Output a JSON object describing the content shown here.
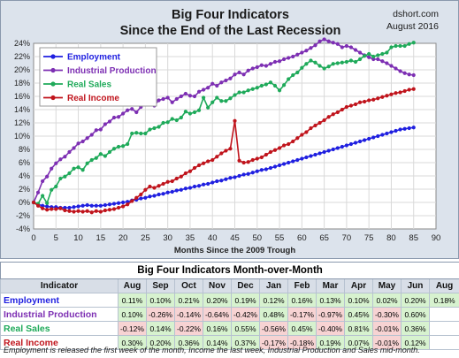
{
  "chart_data": {
    "type": "line",
    "title": "Big Four Indicators",
    "subtitle": "Since the End of the Last Recession",
    "source": "dshort.com",
    "date": "August 2016",
    "xlabel": "Months Since the 2009 Trough",
    "ylabel": "",
    "xlim": [
      0,
      90
    ],
    "ylim": [
      -4,
      24
    ],
    "xticks": [
      0,
      5,
      10,
      15,
      20,
      25,
      30,
      35,
      40,
      45,
      50,
      55,
      60,
      65,
      70,
      75,
      80,
      85,
      90
    ],
    "yticks": [
      "-4%",
      "-2%",
      "0%",
      "2%",
      "4%",
      "6%",
      "8%",
      "10%",
      "12%",
      "14%",
      "16%",
      "18%",
      "20%",
      "22%",
      "24%"
    ],
    "grid": true,
    "legend": "top-left",
    "series": [
      {
        "name": "Employment",
        "color": "#1f1fe0",
        "values": [
          0,
          -0.3,
          -0.5,
          -0.6,
          -0.7,
          -0.7,
          -0.8,
          -0.8,
          -0.8,
          -0.7,
          -0.6,
          -0.5,
          -0.4,
          -0.5,
          -0.5,
          -0.5,
          -0.4,
          -0.3,
          -0.2,
          -0.1,
          0,
          0.1,
          0.3,
          0.4,
          0.6,
          0.7,
          0.9,
          1.0,
          1.2,
          1.3,
          1.5,
          1.6,
          1.8,
          1.9,
          2.1,
          2.2,
          2.4,
          2.5,
          2.7,
          2.8,
          3.0,
          3.2,
          3.3,
          3.5,
          3.7,
          3.8,
          4.0,
          4.2,
          4.3,
          4.5,
          4.7,
          4.9,
          5.0,
          5.2,
          5.4,
          5.6,
          5.8,
          6.0,
          6.2,
          6.4,
          6.6,
          6.8,
          7.0,
          7.2,
          7.4,
          7.6,
          7.8,
          8.0,
          8.2,
          8.4,
          8.6,
          8.8,
          9.0,
          9.2,
          9.4,
          9.6,
          9.8,
          10.0,
          10.2,
          10.4,
          10.6,
          10.8,
          11.0,
          11.1,
          11.2,
          11.3
        ]
      },
      {
        "name": "Industrial Production",
        "color": "#7d2fb3",
        "values": [
          0,
          1.5,
          3.2,
          3.9,
          5.1,
          5.9,
          6.5,
          6.9,
          7.6,
          8.2,
          8.9,
          9.2,
          9.7,
          10.2,
          10.9,
          11.0,
          11.8,
          12.2,
          12.8,
          12.9,
          13.4,
          13.9,
          14.1,
          13.6,
          14.4,
          14.9,
          15.0,
          14.6,
          15.4,
          15.6,
          15.8,
          15.1,
          15.6,
          16.0,
          16.4,
          16.1,
          16.0,
          16.7,
          17.0,
          17.3,
          17.9,
          17.6,
          18.1,
          18.4,
          18.7,
          19.3,
          19.6,
          19.3,
          19.9,
          20.2,
          20.4,
          20.7,
          20.6,
          20.9,
          21.2,
          21.3,
          21.6,
          21.8,
          22.0,
          22.3,
          22.6,
          22.9,
          23.3,
          23.7,
          24.3,
          24.6,
          24.3,
          24.1,
          23.9,
          23.4,
          23.6,
          23.4,
          23.0,
          22.6,
          22.2,
          21.9,
          21.6,
          21.6,
          21.3,
          21.0,
          20.6,
          20.2,
          19.8,
          19.5,
          19.3,
          19.2
        ]
      },
      {
        "name": "Real Sales",
        "color": "#1faa5a",
        "values": [
          0,
          -0.2,
          1.0,
          -0.1,
          1.9,
          2.4,
          3.6,
          3.9,
          4.4,
          5.1,
          5.3,
          4.9,
          5.9,
          6.4,
          6.7,
          7.3,
          7.0,
          7.6,
          8.1,
          8.4,
          8.5,
          8.8,
          10.4,
          10.5,
          10.4,
          10.4,
          11.0,
          11.2,
          11.4,
          12.0,
          12.1,
          12.6,
          12.4,
          12.8,
          13.7,
          13.4,
          13.6,
          13.9,
          15.8,
          14.3,
          15.1,
          15.8,
          15.3,
          15.3,
          15.7,
          16.2,
          16.6,
          16.6,
          16.9,
          17.1,
          17.3,
          17.6,
          17.8,
          18.1,
          17.6,
          16.9,
          17.7,
          18.6,
          19.2,
          19.6,
          20.3,
          20.9,
          21.4,
          21.1,
          20.6,
          20.2,
          20.5,
          20.9,
          21.0,
          21.1,
          21.2,
          21.4,
          21.2,
          21.6,
          22.1,
          22.4,
          22.0,
          22.2,
          22.4,
          22.6,
          23.4,
          23.6,
          23.6,
          23.6,
          23.9,
          24.1
        ]
      },
      {
        "name": "Real Income",
        "color": "#c0141c",
        "values": [
          0,
          -0.5,
          -0.9,
          -1.1,
          -1.0,
          -1.0,
          -0.9,
          -1.2,
          -1.3,
          -1.4,
          -1.3,
          -1.4,
          -1.3,
          -1.5,
          -1.3,
          -1.4,
          -1.2,
          -1.1,
          -1.0,
          -0.8,
          -0.6,
          -0.3,
          0.2,
          0.7,
          1.2,
          1.9,
          2.4,
          2.2,
          2.5,
          2.8,
          3.1,
          3.2,
          3.6,
          3.9,
          4.4,
          4.7,
          5.2,
          5.6,
          5.9,
          6.2,
          6.4,
          6.9,
          7.4,
          7.8,
          8.1,
          12.3,
          6.3,
          6.0,
          6.1,
          6.4,
          6.6,
          6.8,
          7.2,
          7.6,
          7.9,
          8.2,
          8.6,
          8.8,
          9.2,
          9.7,
          10.2,
          10.6,
          11.2,
          11.6,
          12.0,
          12.4,
          12.9,
          13.3,
          13.6,
          14.0,
          14.4,
          14.6,
          14.8,
          15.1,
          15.2,
          15.4,
          15.5,
          15.7,
          15.9,
          16.1,
          16.3,
          16.5,
          16.6,
          16.8,
          17.0,
          17.1
        ]
      }
    ]
  },
  "table": {
    "title": "Big Four Indicators Month-over-Month",
    "indicator_header": "Indicator",
    "months": [
      "Aug",
      "Sep",
      "Oct",
      "Nov",
      "Dec",
      "Jan",
      "Feb",
      "Mar",
      "Apr",
      "May",
      "Jun",
      "Aug"
    ],
    "rows": [
      {
        "name": "Employment",
        "color": "#1f1fe0",
        "values": [
          "0.11%",
          "0.10%",
          "0.21%",
          "0.20%",
          "0.19%",
          "0.12%",
          "0.16%",
          "0.13%",
          "0.10%",
          "0.02%",
          "0.20%",
          "0.18%"
        ]
      },
      {
        "name": "Industrial Production",
        "color": "#7d2fb3",
        "values": [
          "0.10%",
          "-0.26%",
          "-0.14%",
          "-0.64%",
          "-0.42%",
          "0.48%",
          "-0.17%",
          "-0.97%",
          "0.45%",
          "-0.30%",
          "0.60%",
          ""
        ]
      },
      {
        "name": "Real Sales",
        "color": "#1faa5a",
        "values": [
          "-0.12%",
          "0.14%",
          "-0.22%",
          "0.16%",
          "0.55%",
          "-0.56%",
          "0.45%",
          "-0.40%",
          "0.81%",
          "-0.01%",
          "0.36%",
          ""
        ]
      },
      {
        "name": "Real Income",
        "color": "#c0141c",
        "values": [
          "0.30%",
          "0.20%",
          "0.36%",
          "0.14%",
          "0.37%",
          "-0.17%",
          "-0.18%",
          "0.19%",
          "0.07%",
          "-0.01%",
          "0.12%",
          ""
        ]
      }
    ]
  },
  "footnote": "Employment is released the first week of the month, Income the last week, Industrial Production and Sales mid-month."
}
